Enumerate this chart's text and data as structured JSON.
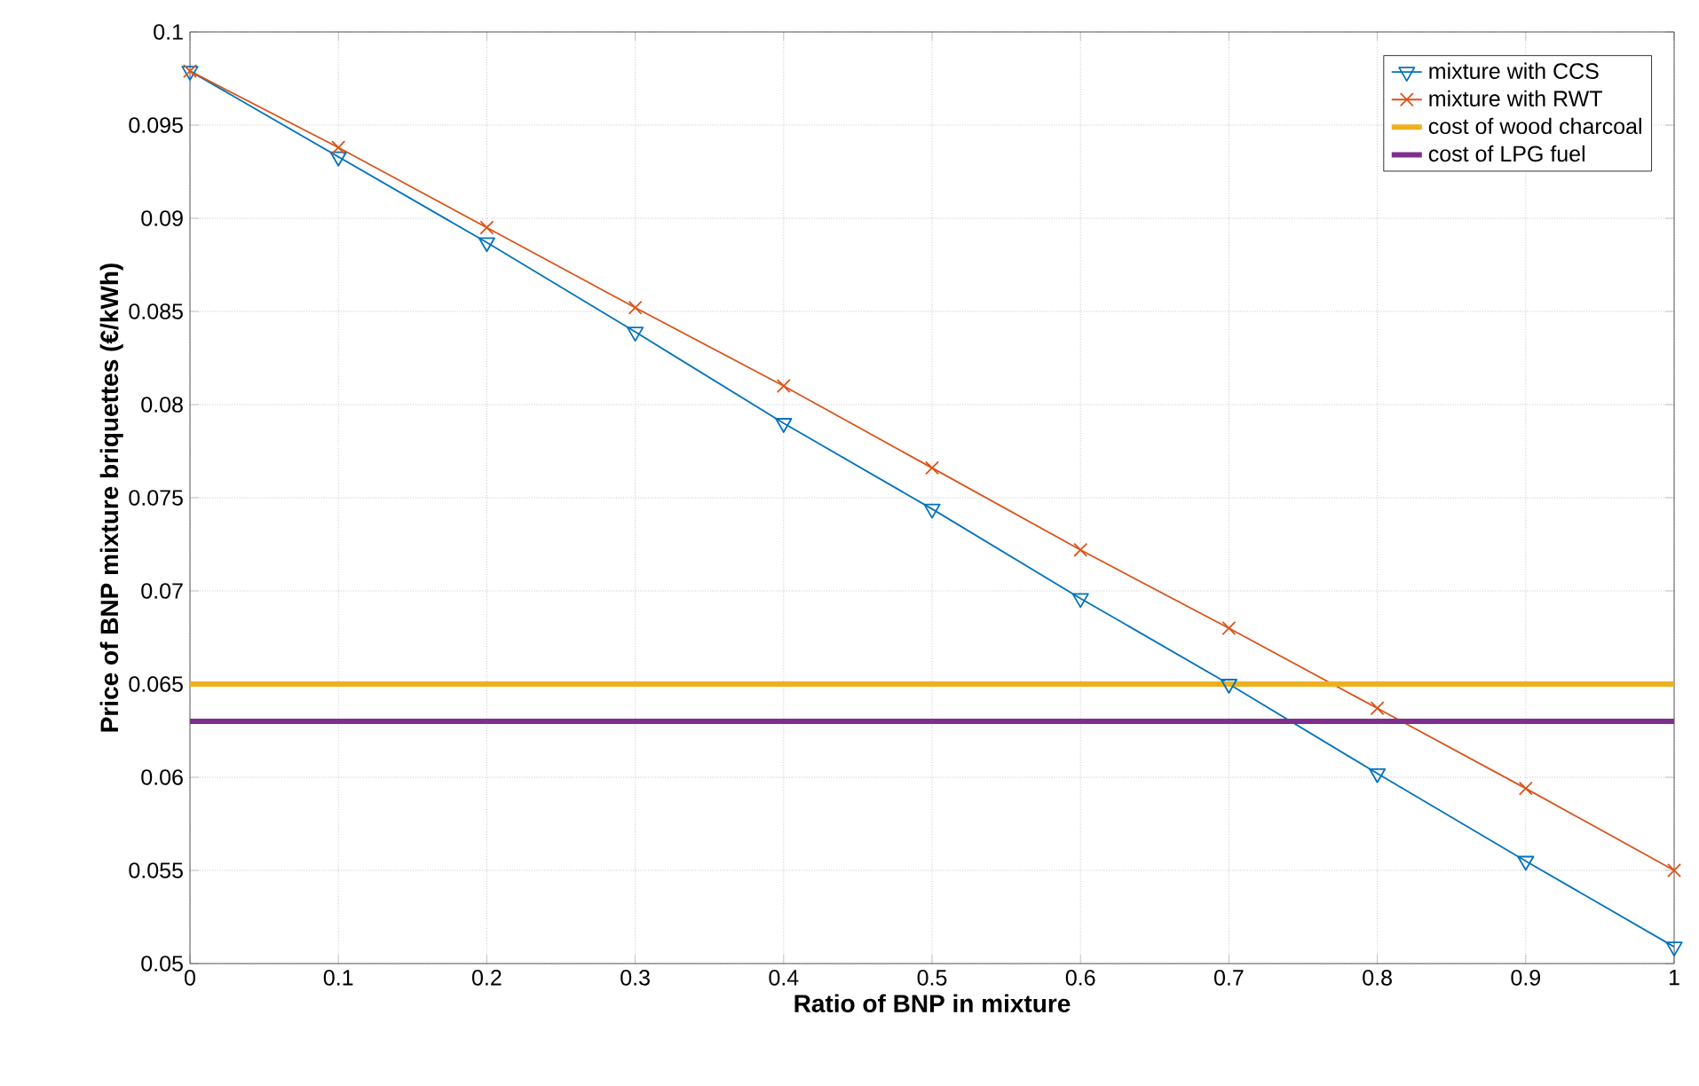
{
  "chart_data": {
    "type": "line",
    "xlabel": "Ratio of BNP in mixture",
    "ylabel": "Price of BNP mixture briquettes (€/kWh)",
    "x": [
      0,
      0.1,
      0.2,
      0.3,
      0.4,
      0.5,
      0.6,
      0.7,
      0.8,
      0.9,
      1
    ],
    "series": [
      {
        "name": "mixture with CCS",
        "color": "#0072bd",
        "marker": "triangle",
        "values": [
          0.0979,
          0.0933,
          0.0887,
          0.0839,
          0.079,
          0.0744,
          0.0696,
          0.065,
          0.0602,
          0.0555,
          0.0509
        ]
      },
      {
        "name": "mixture with RWT",
        "color": "#d95319",
        "marker": "cross",
        "values": [
          0.0979,
          0.0938,
          0.0895,
          0.0852,
          0.081,
          0.0766,
          0.0722,
          0.068,
          0.0637,
          0.0594,
          0.055
        ]
      }
    ],
    "ref_lines": [
      {
        "axis": "y",
        "value": 0.065,
        "label": "cost of wood charcoal",
        "color": "#edb120"
      },
      {
        "axis": "y",
        "value": 0.063,
        "label": "cost of LPG fuel",
        "color": "#7e2f8e"
      }
    ],
    "xlim": [
      0,
      1
    ],
    "ylim": [
      0.05,
      0.1
    ],
    "xticks": [
      0,
      0.1,
      0.2,
      0.3,
      0.4,
      0.5,
      0.6,
      0.7,
      0.8,
      0.9,
      1
    ],
    "yticks": [
      0.05,
      0.055,
      0.06,
      0.065,
      0.07,
      0.075,
      0.08,
      0.085,
      0.09,
      0.095,
      0.1
    ],
    "grid": true,
    "legend": "top right"
  }
}
